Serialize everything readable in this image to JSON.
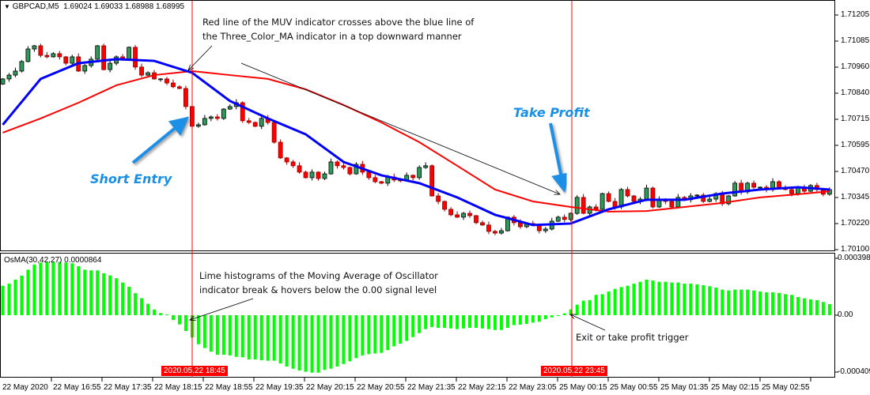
{
  "header": {
    "symbol": "GBPCAD,M5",
    "ohlc": "1.69024 1.69033 1.68988 1.68995"
  },
  "oscillator_label": "OsMA(30,42,27) 0.0000864",
  "price_axis": [
    "1.71205",
    "1.71085",
    "1.70960",
    "1.70840",
    "1.70715",
    "1.70595",
    "1.70470",
    "1.70345",
    "1.70220",
    "1.70100"
  ],
  "osc_axis": [
    "0.0003984",
    "0.00",
    "-0.000409"
  ],
  "time_axis": [
    "22 May 2020",
    "22 May 16:55",
    "22 May 17:35",
    "22 May 18:15",
    "22 May 18:55",
    "22 May 19:35",
    "22 May 20:15",
    "22 May 20:55",
    "22 May 21:35",
    "22 May 22:15",
    "22 May 23:05",
    "25 May 00:15",
    "25 May 00:55",
    "25 May 01:35",
    "25 May 02:15",
    "25 May 02:55"
  ],
  "markers": {
    "entry_time": "2020.05.22 18:45",
    "exit_time": "2020.05.22 23:45"
  },
  "annotations": {
    "cross_note_line1": "Red line of the MUV indicator crosses above the blue line of",
    "cross_note_line2": "the Three_Color_MA indicator in a top downward manner",
    "short_entry": "Short Entry",
    "take_profit": "Take Profit",
    "osma_note_line1": "Lime histograms of the Moving Average of Oscillator",
    "osma_note_line2": "indicator break & hovers below the 0.00 signal level",
    "exit_note": "Exit or take profit trigger"
  },
  "colors": {
    "bull": "#2e9a5a",
    "bear": "#ff0000",
    "three_color_ma": "#0000ff",
    "muv": "#ff0000",
    "osma": "#00ff00",
    "marker_line": "#ff0000",
    "callout": "#1a8fe6"
  },
  "chart_data": [
    {
      "type": "candlestick",
      "title": "GBPCAD,M5",
      "ylim": [
        1.701,
        1.71205
      ],
      "closes": [
        1.70904,
        1.70922,
        1.70941,
        1.70986,
        1.71045,
        1.7106,
        1.71015,
        1.71008,
        1.71023,
        1.71008,
        1.70978,
        1.71008,
        1.70941,
        1.70967,
        1.70997,
        1.7106,
        1.70948,
        1.70978,
        1.71008,
        1.70997,
        1.71053,
        1.7096,
        1.70922,
        1.70933,
        1.70904,
        1.70904,
        1.70885,
        1.70867,
        1.70859,
        1.70774,
        1.70681,
        1.70688,
        1.70718,
        1.70725,
        1.70718,
        1.70762,
        1.70774,
        1.70792,
        1.70707,
        1.70699,
        1.70681,
        1.70718,
        1.70699,
        1.70606,
        1.70532,
        1.70513,
        1.70495,
        1.70465,
        1.70439,
        1.70465,
        1.70435,
        1.70457,
        1.70513,
        1.70495,
        1.70487,
        1.70457,
        1.70502,
        1.70465,
        1.70439,
        1.7042,
        1.70413,
        1.70442,
        1.70428,
        1.70424,
        1.7045,
        1.70439,
        1.70487,
        1.70495,
        1.70353,
        1.70327,
        1.7029,
        1.70264,
        1.70253,
        1.70271,
        1.7026,
        1.70227,
        1.70216,
        1.70186,
        1.70178,
        1.70189,
        1.70253,
        1.70227,
        1.70208,
        1.70223,
        1.70216,
        1.70189,
        1.70197,
        1.70234,
        1.70253,
        1.70242,
        1.70271,
        1.70346,
        1.70271,
        1.70301,
        1.7029,
        1.70364,
        1.70327,
        1.70301,
        1.70383,
        1.70353,
        1.70327,
        1.70338,
        1.7039,
        1.70301,
        1.70338,
        1.70327,
        1.70301,
        1.70346,
        1.70335,
        1.70353,
        1.70357,
        1.70327,
        1.70338,
        1.70364,
        1.70316,
        1.70353,
        1.70413,
        1.70372,
        1.70413,
        1.70394,
        1.70394,
        1.70383,
        1.7042,
        1.7039,
        1.70383,
        1.70364,
        1.7039,
        1.70375,
        1.70402,
        1.70383,
        1.70361,
        1.70383
      ],
      "three_color_ma_every_6_bars": [
        1.70688,
        1.70904,
        1.70978,
        1.70997,
        1.70989,
        1.70933,
        1.708,
        1.70718,
        1.70643,
        1.70513,
        1.7045,
        1.70413,
        1.70346,
        1.70264,
        1.70216,
        1.70223,
        1.7029,
        1.70335,
        1.70335,
        1.70364,
        1.70383,
        1.70394,
        1.70383
      ],
      "muv_every_6_bars": [
        1.70651,
        1.70718,
        1.70792,
        1.70874,
        1.70922,
        1.70941,
        1.70922,
        1.70904,
        1.70855,
        1.70781,
        1.70699,
        1.70606,
        1.70495,
        1.70383,
        1.70327,
        1.70301,
        1.70279,
        1.70282,
        1.70301,
        1.7032,
        1.70346,
        1.70361,
        1.70375
      ]
    },
    {
      "type": "bar",
      "title": "OsMA(30,42,27)",
      "ylim": [
        -0.000409,
        0.0003984
      ],
      "values": [
        0.000207,
        0.000222,
        0.00025,
        0.000278,
        0.00032,
        0.000355,
        0.00037,
        0.000375,
        0.000375,
        0.000375,
        0.00037,
        0.000365,
        0.000345,
        0.00032,
        0.000315,
        0.000315,
        0.000295,
        0.00028,
        0.00026,
        0.00023,
        0.0002,
        0.000155,
        0.00012,
        8e-05,
        4e-05,
        1.5e-05,
        5e-06,
        -3.3e-05,
        -6.5e-05,
        -0.000111,
        -0.000157,
        -0.000204,
        -0.000231,
        -0.000256,
        -0.000278,
        -0.000278,
        -0.000283,
        -0.000293,
        -0.000296,
        -0.000311,
        -0.000311,
        -0.000317,
        -0.00032,
        -0.00032,
        -0.000339,
        -0.000361,
        -0.000376,
        -0.000389,
        -0.000398,
        -0.000404,
        -0.000404,
        -0.000385,
        -0.000376,
        -0.000361,
        -0.000343,
        -0.000324,
        -0.000302,
        -0.000283,
        -0.000274,
        -0.000269,
        -0.000265,
        -0.000246,
        -0.000219,
        -0.0002,
        -0.000181,
        -0.000154,
        -0.000126,
        -9.8e-05,
        -8.3e-05,
        -8.9e-05,
        -8.9e-05,
        -9.3e-05,
        -9.8e-05,
        -9.3e-05,
        -8.9e-05,
        -8.9e-05,
        -9.3e-05,
        -9.8e-05,
        -0.000104,
        -0.000104,
        -8.9e-05,
        -7e-05,
        -6.7e-05,
        -6.1e-05,
        -5.2e-05,
        -4.6e-05,
        -2.8e-05,
        -1.5e-05,
        -6e-06,
        1.3e-05,
        4.1e-05,
        7.4e-05,
        0.000102,
        0.000106,
        0.000143,
        0.000148,
        0.000167,
        0.000185,
        0.000198,
        0.000207,
        0.000222,
        0.000235,
        0.00025,
        0.000244,
        0.000235,
        0.000235,
        0.00023,
        0.00023,
        0.000222,
        0.000222,
        0.000217,
        0.000211,
        0.000204,
        0.000194,
        0.00018,
        0.000174,
        0.00018,
        0.00018,
        0.00018,
        0.000174,
        0.000167,
        0.000161,
        0.000161,
        0.000157,
        0.000148,
        0.000143,
        0.000128,
        0.000119,
        0.000111,
        0.000106,
        9.3e-05,
        7.8e-05
      ]
    }
  ]
}
